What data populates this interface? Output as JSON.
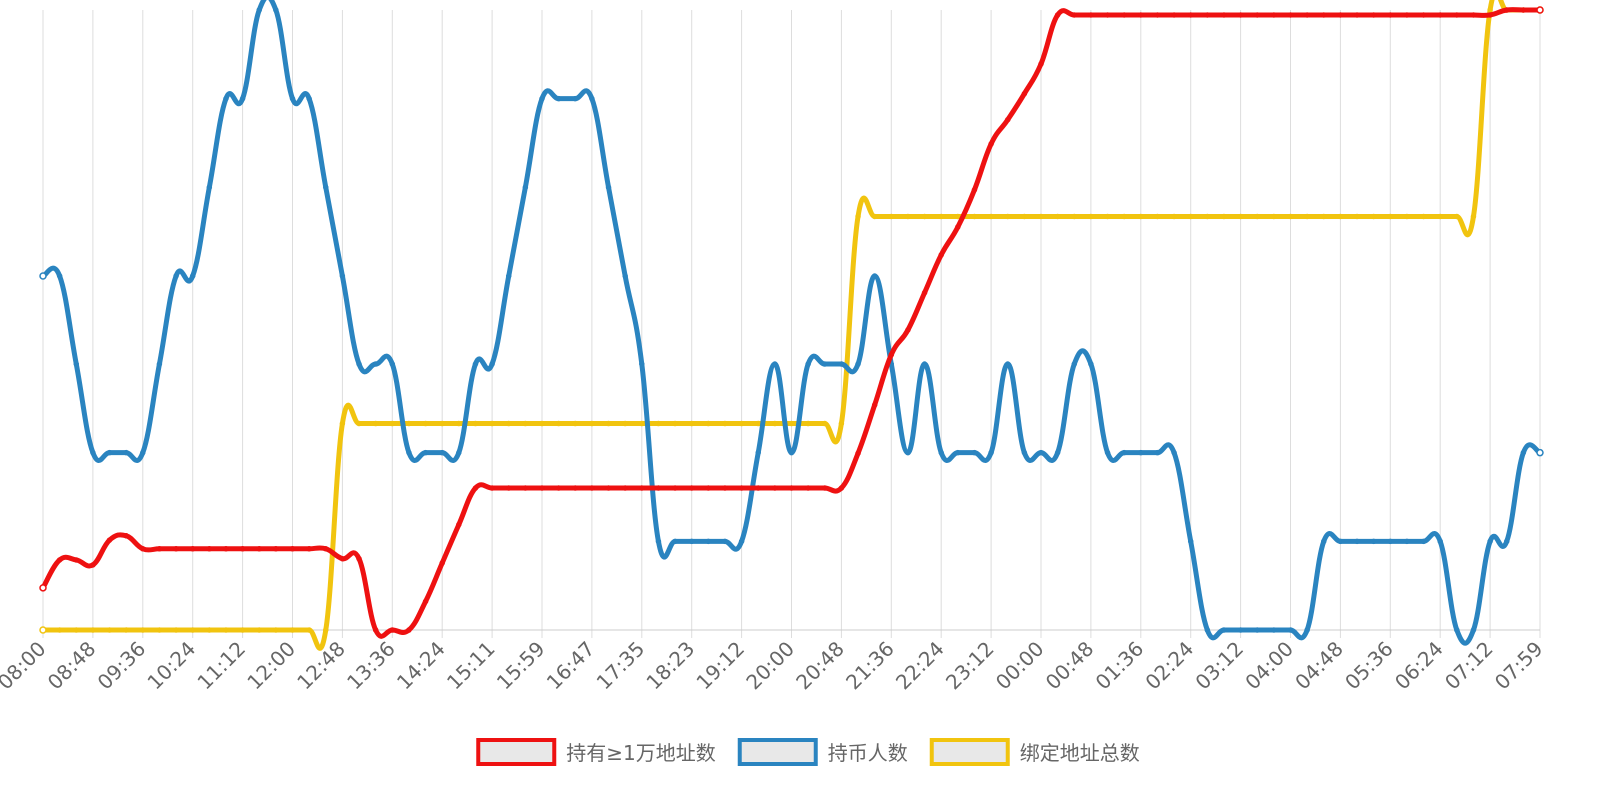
{
  "chart_data": {
    "type": "line",
    "categories": [
      "08:00",
      null,
      null,
      "08:48",
      null,
      null,
      "09:36",
      null,
      null,
      "10:24",
      null,
      null,
      "11:12",
      null,
      null,
      "12:00",
      null,
      null,
      "12:48",
      null,
      null,
      "13:36",
      null,
      null,
      "14:24",
      null,
      null,
      "15:11",
      null,
      null,
      "15:59",
      null,
      null,
      "16:47",
      null,
      null,
      "17:35",
      null,
      null,
      "18:23",
      null,
      null,
      "19:12",
      null,
      null,
      "20:00",
      null,
      null,
      "20:48",
      null,
      null,
      "21:36",
      null,
      null,
      "22:24",
      null,
      null,
      "23:12",
      null,
      null,
      "00:00",
      null,
      null,
      "00:48",
      null,
      null,
      "01:36",
      null,
      null,
      "02:24",
      null,
      null,
      "03:12",
      null,
      null,
      "04:00",
      null,
      null,
      "04:48",
      null,
      null,
      "05:36",
      null,
      null,
      "06:24",
      null,
      null,
      "07:12",
      null,
      null,
      "07:59"
    ],
    "series": [
      {
        "name": "持有≥1万地址数",
        "color": "#ee1111",
        "values": [
          6.8,
          11.3,
          11.3,
          10.5,
          14.5,
          15.2,
          13.1,
          13.1,
          13.1,
          13.1,
          13.1,
          13.1,
          13.1,
          13.1,
          13.1,
          13.1,
          13.1,
          13.1,
          11.5,
          11.5,
          0,
          0,
          0,
          4.6,
          10.8,
          17,
          22.9,
          22.9,
          22.9,
          22.9,
          22.9,
          22.9,
          22.9,
          22.9,
          22.9,
          22.9,
          22.9,
          22.9,
          22.9,
          22.9,
          22.9,
          22.9,
          22.9,
          22.9,
          22.9,
          22.9,
          22.9,
          22.9,
          22.9,
          28.5,
          36.3,
          44.4,
          48.4,
          54.4,
          60.5,
          65,
          71,
          78.4,
          82.3,
          86.5,
          91.3,
          99.2,
          99.2,
          99.2,
          99.2,
          99.2,
          99.2,
          99.2,
          99.2,
          99.2,
          99.2,
          99.2,
          99.2,
          99.2,
          99.2,
          99.2,
          99.2,
          99.2,
          99.2,
          99.2,
          99.2,
          99.2,
          99.2,
          99.2,
          99.2,
          99.2,
          99.2,
          99.2,
          100,
          100,
          100
        ]
      },
      {
        "name": "持币人数",
        "color": "#2a84c0",
        "values": [
          57.1,
          57.1,
          42.9,
          28.6,
          28.6,
          28.6,
          28.6,
          42.9,
          57.1,
          57.1,
          71.4,
          85.7,
          85.7,
          100,
          100,
          85.7,
          85.7,
          71.4,
          57.1,
          42.9,
          42.9,
          42.9,
          28.6,
          28.6,
          28.6,
          28.6,
          42.9,
          42.9,
          57.1,
          71.4,
          85.7,
          85.7,
          85.7,
          85.7,
          71.4,
          57.1,
          42.9,
          14.3,
          14.3,
          14.3,
          14.3,
          14.3,
          14.3,
          28.6,
          42.9,
          28.6,
          42.9,
          42.9,
          42.9,
          42.9,
          57.1,
          42.9,
          28.6,
          42.9,
          28.6,
          28.6,
          28.6,
          28.6,
          42.9,
          28.6,
          28.6,
          28.6,
          42.9,
          42.9,
          28.6,
          28.6,
          28.6,
          28.6,
          28.6,
          14.3,
          0,
          0,
          0,
          0,
          0,
          0,
          0,
          14.3,
          14.3,
          14.3,
          14.3,
          14.3,
          14.3,
          14.3,
          14.3,
          0,
          0,
          14.3,
          14.3,
          28.6,
          28.6
        ]
      },
      {
        "name": "绑定地址总数",
        "color": "#f1c40f",
        "values": [
          0,
          0,
          0,
          0,
          0,
          0,
          0,
          0,
          0,
          0,
          0,
          0,
          0,
          0,
          0,
          0,
          0,
          0,
          33.3,
          33.3,
          33.3,
          33.3,
          33.3,
          33.3,
          33.3,
          33.3,
          33.3,
          33.3,
          33.3,
          33.3,
          33.3,
          33.3,
          33.3,
          33.3,
          33.3,
          33.3,
          33.3,
          33.3,
          33.3,
          33.3,
          33.3,
          33.3,
          33.3,
          33.3,
          33.3,
          33.3,
          33.3,
          33.3,
          33.3,
          66.7,
          66.7,
          66.7,
          66.7,
          66.7,
          66.7,
          66.7,
          66.7,
          66.7,
          66.7,
          66.7,
          66.7,
          66.7,
          66.7,
          66.7,
          66.7,
          66.7,
          66.7,
          66.7,
          66.7,
          66.7,
          66.7,
          66.7,
          66.7,
          66.7,
          66.7,
          66.7,
          66.7,
          66.7,
          66.7,
          66.7,
          66.7,
          66.7,
          66.7,
          66.7,
          66.7,
          66.7,
          66.7,
          100,
          100,
          100,
          100
        ]
      }
    ],
    "ylim": [
      0,
      100
    ],
    "grid": true,
    "legend": "bottom"
  }
}
